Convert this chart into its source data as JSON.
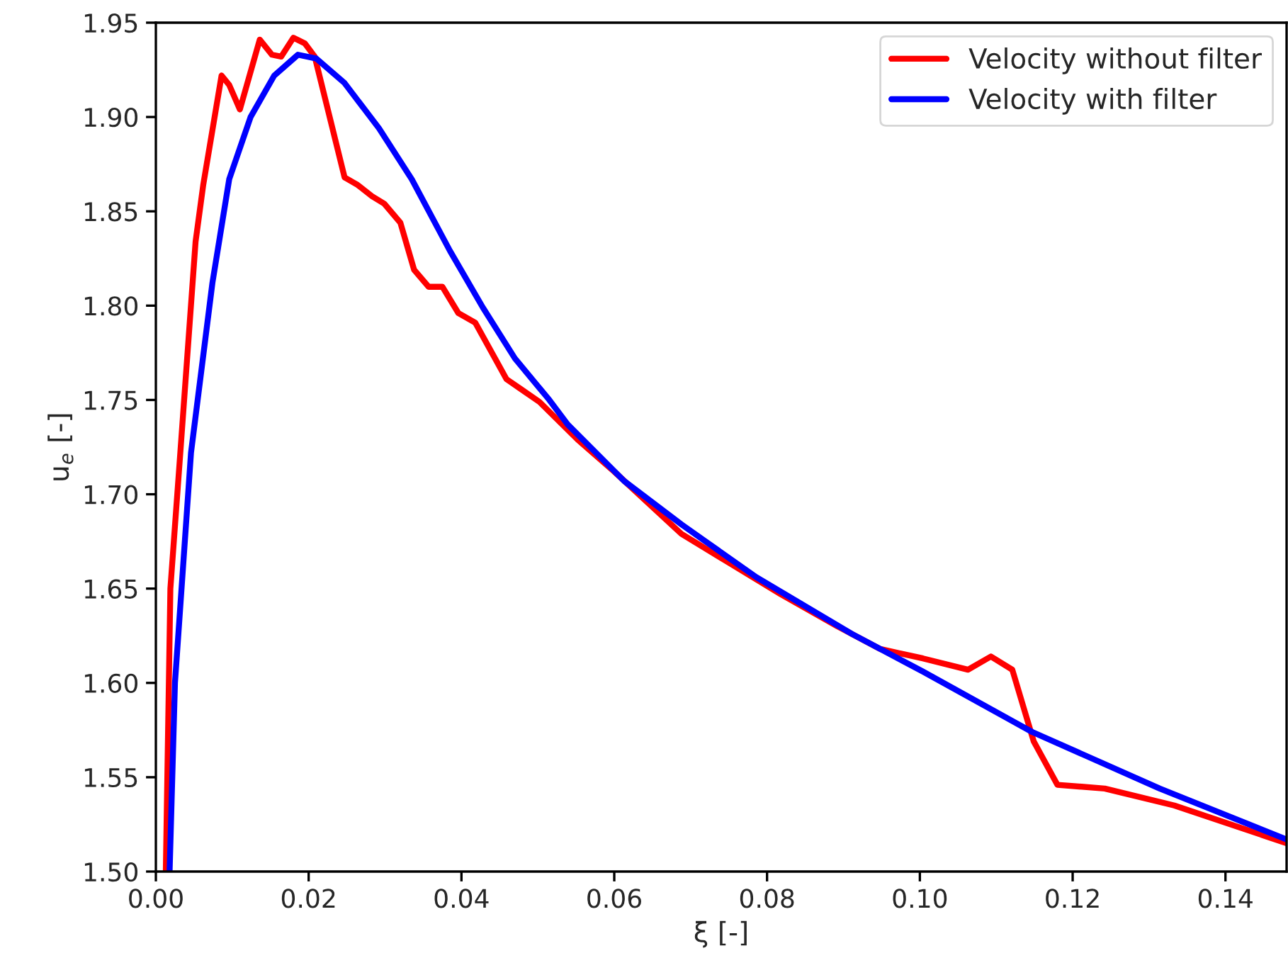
{
  "chart_data": {
    "type": "line",
    "xlabel": "ξ [-]",
    "ylabel": "u$_{e}$ [-]",
    "xlim": [
      0,
      0.148
    ],
    "xticks": [
      {
        "value": 0,
        "label": "0.00"
      },
      {
        "value": 0.02,
        "label": "0.02"
      },
      {
        "value": 0.04,
        "label": "0.04"
      },
      {
        "value": 0.06,
        "label": "0.06"
      },
      {
        "value": 0.08,
        "label": "0.08"
      },
      {
        "value": 0.1,
        "label": "0.10"
      },
      {
        "value": 0.12,
        "label": "0.12"
      },
      {
        "value": 0.14,
        "label": "0.14"
      }
    ],
    "ylim": [
      1.5,
      1.95
    ],
    "yticks": [
      {
        "value": 1.5,
        "label": "1.50"
      },
      {
        "value": 1.55,
        "label": "1.55"
      },
      {
        "value": 1.6,
        "label": "1.60"
      },
      {
        "value": 1.65,
        "label": "1.65"
      },
      {
        "value": 1.7,
        "label": "1.70"
      },
      {
        "value": 1.75,
        "label": "1.75"
      },
      {
        "value": 1.8,
        "label": "1.80"
      },
      {
        "value": 1.85,
        "label": "1.85"
      },
      {
        "value": 1.9,
        "label": "1.90"
      },
      {
        "value": 1.95,
        "label": "1.95"
      }
    ],
    "grid": false,
    "legend": "top right",
    "marker": "none",
    "line_style": "solid",
    "series": [
      {
        "name": "Velocity without filter",
        "color": "#ff0000",
        "x": [
          0.0013,
          0.0019,
          0.0032,
          0.0052,
          0.0062,
          0.0086,
          0.0096,
          0.011,
          0.0136,
          0.0152,
          0.0164,
          0.018,
          0.0195,
          0.0208,
          0.0247,
          0.0264,
          0.0283,
          0.0299,
          0.032,
          0.0338,
          0.0357,
          0.0375,
          0.0396,
          0.0418,
          0.0459,
          0.0477,
          0.0502,
          0.0552,
          0.06,
          0.0688,
          0.0749,
          0.0818,
          0.0892,
          0.0948,
          0.1004,
          0.1063,
          0.1093,
          0.1121,
          0.1149,
          0.118,
          0.1242,
          0.1333,
          0.148
        ],
        "values": [
          1.5,
          1.65,
          1.722,
          1.834,
          1.864,
          1.922,
          1.917,
          1.904,
          1.941,
          1.933,
          1.932,
          1.942,
          1.939,
          1.932,
          1.868,
          1.864,
          1.858,
          1.854,
          1.844,
          1.819,
          1.81,
          1.81,
          1.796,
          1.791,
          1.761,
          1.756,
          1.749,
          1.729,
          1.712,
          1.679,
          1.664,
          1.647,
          1.63,
          1.618,
          1.613,
          1.607,
          1.614,
          1.607,
          1.569,
          1.546,
          1.544,
          1.535,
          1.515
        ]
      },
      {
        "name": "Velocity with filter",
        "color": "#0000ff",
        "x": [
          0.0018,
          0.0025,
          0.0046,
          0.0074,
          0.0096,
          0.0124,
          0.0155,
          0.0186,
          0.021,
          0.0247,
          0.0292,
          0.0335,
          0.0385,
          0.0428,
          0.047,
          0.0515,
          0.0539,
          0.0613,
          0.0688,
          0.0786,
          0.0911,
          0.1004,
          0.1147,
          0.1314,
          0.148
        ],
        "values": [
          1.5,
          1.6,
          1.722,
          1.812,
          1.867,
          1.9,
          1.922,
          1.933,
          1.931,
          1.918,
          1.894,
          1.867,
          1.829,
          1.799,
          1.772,
          1.75,
          1.737,
          1.707,
          1.684,
          1.656,
          1.626,
          1.606,
          1.574,
          1.544,
          1.517
        ]
      }
    ]
  }
}
